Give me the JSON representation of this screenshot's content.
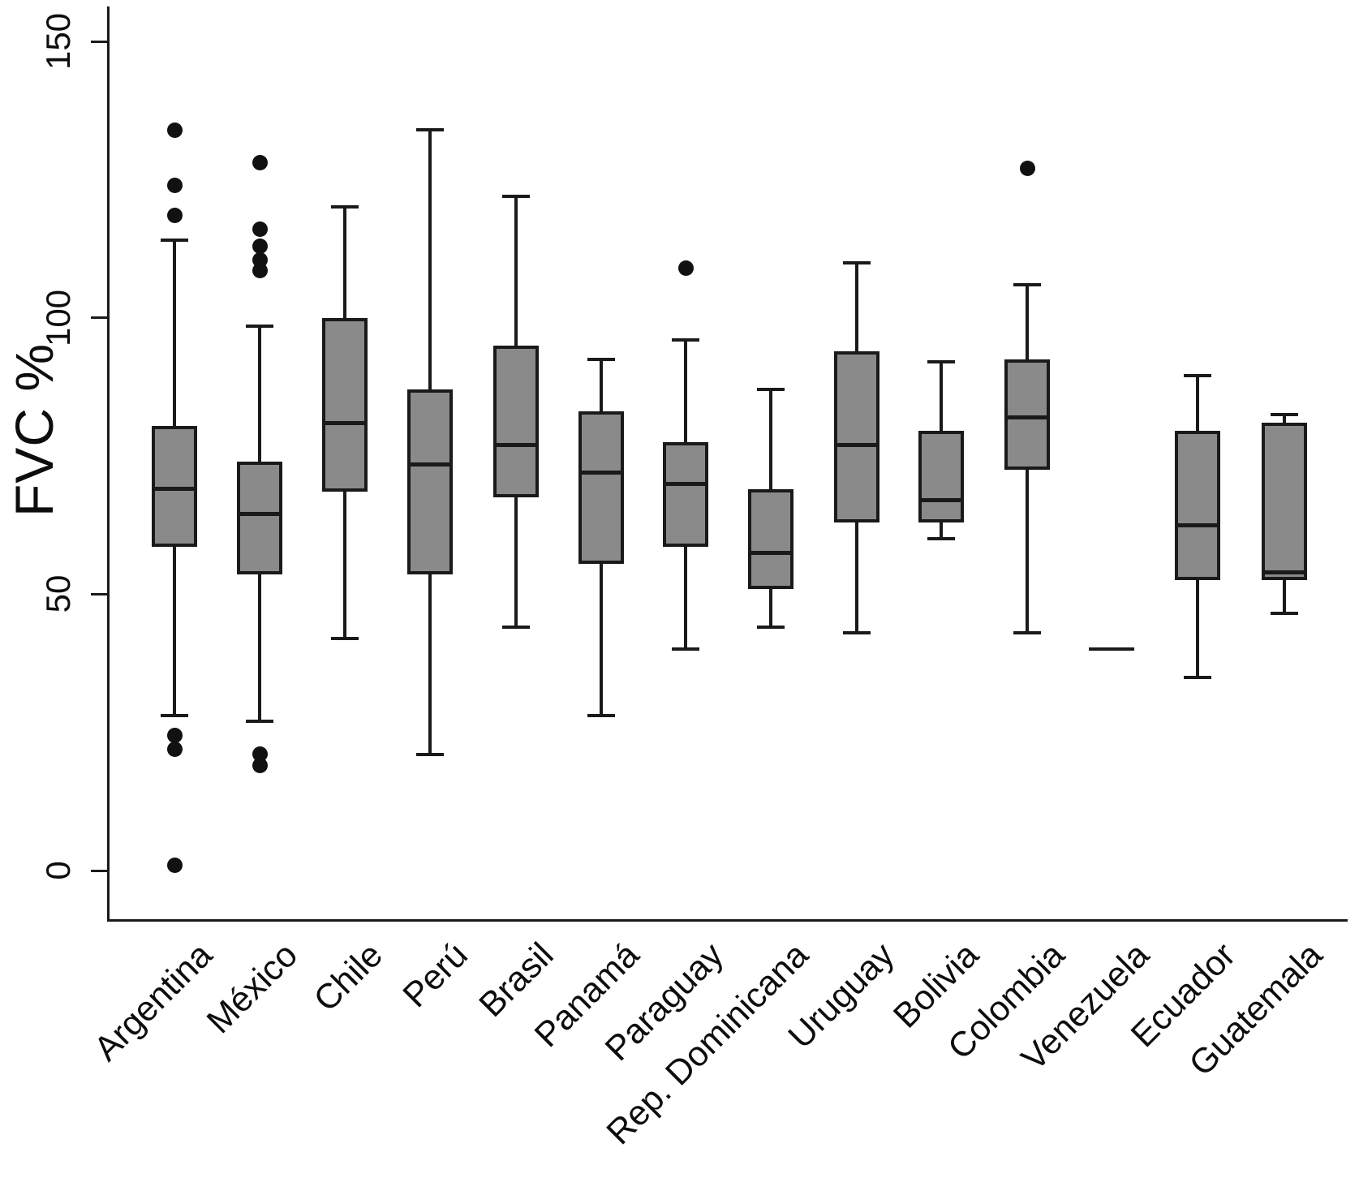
{
  "chart_data": {
    "type": "boxplot",
    "title": "",
    "xlabel": "",
    "ylabel": "FVC %",
    "y_ticks": [
      0,
      50,
      100,
      150
    ],
    "ylim": [
      -9,
      156
    ],
    "grid": false,
    "legend": "none",
    "categories": [
      "Argentina",
      "México",
      "Chile",
      "Perú",
      "Brasil",
      "Panamá",
      "Paraguay",
      "Rep. Dominicana",
      "Uruguay",
      "Bolivia",
      "Colombia",
      "Venezuela",
      "Ecuador",
      "Guatemala"
    ],
    "boxes": [
      {
        "category": "Argentina",
        "whisker_low": 28,
        "q1": 58.5,
        "median": 69,
        "q3": 80.5,
        "whisker_high": 114,
        "outliers": [
          134,
          124,
          118.5,
          24.5,
          22,
          1
        ]
      },
      {
        "category": "México",
        "whisker_low": 27,
        "q1": 53.5,
        "median": 64.5,
        "q3": 74,
        "whisker_high": 98.5,
        "outliers": [
          128,
          116,
          113,
          110.5,
          108.5,
          21,
          19
        ]
      },
      {
        "category": "Chile",
        "whisker_low": 42,
        "q1": 68.5,
        "median": 81,
        "q3": 100,
        "whisker_high": 120,
        "outliers": []
      },
      {
        "category": "Perú",
        "whisker_low": 21,
        "q1": 53.5,
        "median": 73.5,
        "q3": 87,
        "whisker_high": 134,
        "outliers": []
      },
      {
        "category": "Brasil",
        "whisker_low": 44,
        "q1": 67.5,
        "median": 77,
        "q3": 95,
        "whisker_high": 122,
        "outliers": []
      },
      {
        "category": "Panamá",
        "whisker_low": 28,
        "q1": 55.5,
        "median": 72,
        "q3": 83,
        "whisker_high": 92.5,
        "outliers": []
      },
      {
        "category": "Paraguay",
        "whisker_low": 40,
        "q1": 58.5,
        "median": 70,
        "q3": 77.5,
        "whisker_high": 96,
        "outliers": [
          109
        ]
      },
      {
        "category": "Rep. Dominicana",
        "whisker_low": 44,
        "q1": 51,
        "median": 57.5,
        "q3": 69,
        "whisker_high": 87,
        "outliers": []
      },
      {
        "category": "Uruguay",
        "whisker_low": 43,
        "q1": 63,
        "median": 77,
        "q3": 94,
        "whisker_high": 110,
        "outliers": []
      },
      {
        "category": "Bolivia",
        "whisker_low": 60,
        "q1": 63,
        "median": 67,
        "q3": 79.5,
        "whisker_high": 92,
        "outliers": []
      },
      {
        "category": "Colombia",
        "whisker_low": 43,
        "q1": 72.5,
        "median": 82,
        "q3": 92.5,
        "whisker_high": 106,
        "outliers": [
          127
        ]
      },
      {
        "category": "Venezuela",
        "single_value": 40,
        "outliers": []
      },
      {
        "category": "Ecuador",
        "whisker_low": 35,
        "q1": 52.5,
        "median": 62.5,
        "q3": 79.5,
        "whisker_high": 89.5,
        "outliers": []
      },
      {
        "category": "Guatemala",
        "whisker_low": 46.5,
        "q1": 52.5,
        "median": 54,
        "q3": 81,
        "whisker_high": 82.5,
        "outliers": []
      }
    ]
  },
  "colors": {
    "box_fill": "#8a8a8a",
    "line": "#1a1a1a",
    "outlier": "#111111",
    "background": "#ffffff"
  }
}
